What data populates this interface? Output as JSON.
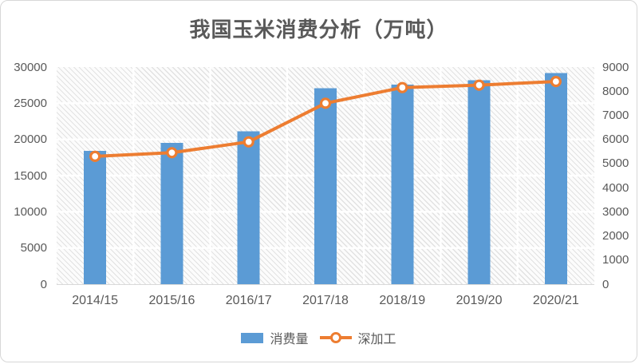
{
  "chart_data": {
    "type": "combo-bar-line",
    "title": "我国玉米消费分析（万吨）",
    "categories": [
      "2014/15",
      "2015/16",
      "2016/17",
      "2017/18",
      "2018/19",
      "2019/20",
      "2020/21"
    ],
    "series": [
      {
        "name": "消费量",
        "type": "bar",
        "axis": "left",
        "color": "#5B9BD5",
        "values": [
          18400,
          19500,
          21100,
          27100,
          27600,
          28200,
          29200
        ]
      },
      {
        "name": "深加工",
        "type": "line",
        "axis": "right",
        "color": "#ED7D31",
        "marker": "circle-open",
        "values": [
          5300,
          5450,
          5900,
          7500,
          8150,
          8250,
          8400
        ]
      }
    ],
    "left_axis": {
      "min": 0,
      "max": 30000,
      "step": 5000,
      "ticks": [
        30000,
        25000,
        20000,
        15000,
        10000,
        5000,
        0
      ]
    },
    "right_axis": {
      "min": 0,
      "max": 9000,
      "step": 1000,
      "ticks": [
        9000,
        8000,
        7000,
        6000,
        5000,
        4000,
        3000,
        2000,
        1000,
        0
      ]
    },
    "grid": true,
    "gridline_color": "#ffffff",
    "plot_hatch": true,
    "legend_position": "bottom",
    "text_color": "#595959"
  }
}
